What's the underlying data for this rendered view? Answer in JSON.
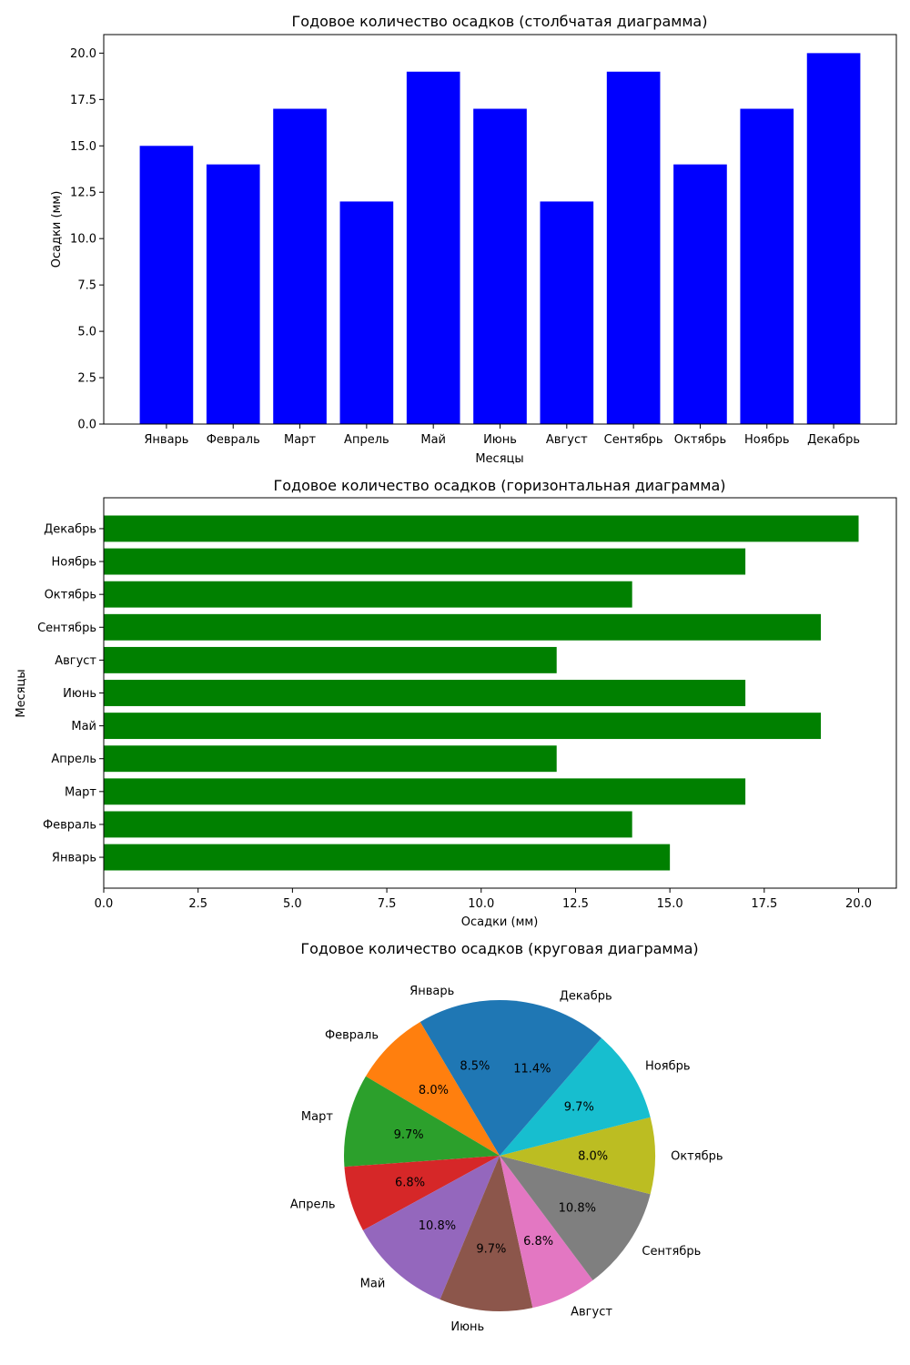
{
  "chart_data": [
    {
      "type": "bar",
      "title": "Годовое количество осадков (столбчатая диаграмма)",
      "xlabel": "Месяцы",
      "ylabel": "Осадки (мм)",
      "categories": [
        "Январь",
        "Февраль",
        "Март",
        "Апрель",
        "Май",
        "Июнь",
        "Август",
        "Сентябрь",
        "Октябрь",
        "Ноябрь",
        "Декабрь"
      ],
      "values": [
        15,
        14,
        17,
        12,
        19,
        17,
        12,
        19,
        14,
        17,
        20
      ],
      "ylim": [
        0,
        21
      ],
      "yticks": [
        0.0,
        2.5,
        5.0,
        7.5,
        10.0,
        12.5,
        15.0,
        17.5,
        20.0
      ],
      "color": "#0000ff",
      "grid": false
    },
    {
      "type": "bar",
      "orientation": "horizontal",
      "title": "Годовое количество осадков (горизонтальная диаграмма)",
      "xlabel": "Осадки (мм)",
      "ylabel": "Месяцы",
      "categories": [
        "Январь",
        "Февраль",
        "Март",
        "Апрель",
        "Май",
        "Июнь",
        "Август",
        "Сентябрь",
        "Октябрь",
        "Ноябрь",
        "Декабрь"
      ],
      "values": [
        15,
        14,
        17,
        12,
        19,
        17,
        12,
        19,
        14,
        17,
        20
      ],
      "xlim": [
        0,
        21
      ],
      "xticks": [
        0.0,
        2.5,
        5.0,
        7.5,
        10.0,
        12.5,
        15.0,
        17.5,
        20.0
      ],
      "color": "#008000",
      "grid": false
    },
    {
      "type": "pie",
      "title": "Годовое количество осадков (круговая диаграмма)",
      "categories": [
        "Январь",
        "Февраль",
        "Март",
        "Апрель",
        "Май",
        "Июнь",
        "Август",
        "Сентябрь",
        "Октябрь",
        "Ноябрь",
        "Декабрь"
      ],
      "values": [
        15,
        14,
        17,
        12,
        19,
        17,
        12,
        19,
        14,
        17,
        20
      ],
      "percent_labels": [
        "8.5%",
        "8.0%",
        "9.7%",
        "6.8%",
        "10.8%",
        "9.7%",
        "6.8%",
        "10.8%",
        "8.0%",
        "9.7%",
        "11.4%"
      ],
      "start_angle_deg": 90,
      "direction": "counterclockwise",
      "colors": [
        "#1f77b4",
        "#ff7f0e",
        "#2ca02c",
        "#d62728",
        "#9467bd",
        "#8c564b",
        "#e377c2",
        "#7f7f7f",
        "#bcbd22",
        "#17becf",
        "#1f77b4"
      ]
    }
  ]
}
